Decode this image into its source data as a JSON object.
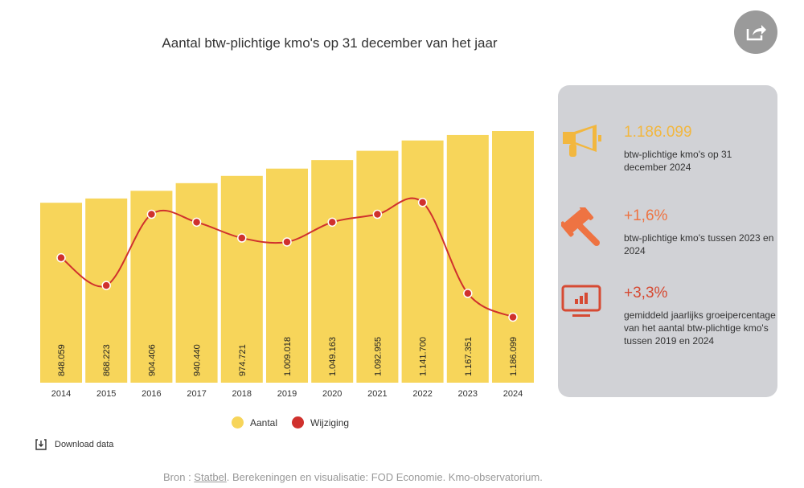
{
  "chart_data": {
    "type": "bar",
    "title": "Aantal btw-plichtige kmo's op 31 december van het jaar",
    "categories": [
      "2014",
      "2015",
      "2016",
      "2017",
      "2018",
      "2019",
      "2020",
      "2021",
      "2022",
      "2023",
      "2024"
    ],
    "series": [
      {
        "name": "Aantal",
        "type": "bar",
        "color": "#f7d55a",
        "values": [
          848059,
          868223,
          904406,
          940440,
          974721,
          1009018,
          1049163,
          1092955,
          1141700,
          1167351,
          1186099
        ],
        "labels": [
          "848.059",
          "868.223",
          "904.406",
          "940.440",
          "974.721",
          "1.009.018",
          "1.049.163",
          "1.092.955",
          "1.141.700",
          "1.167.351",
          "1.186.099"
        ]
      },
      {
        "name": "Wijziging",
        "type": "line",
        "color": "#d0312d",
        "values": [
          3.1,
          2.4,
          4.2,
          4.0,
          3.6,
          3.5,
          4.0,
          4.2,
          4.5,
          2.2,
          1.6
        ]
      }
    ],
    "ylim": [
      0,
      1186099
    ],
    "grid": false,
    "legend": "bottom"
  },
  "share_icon": "share-icon",
  "panel": {
    "kpis": [
      {
        "icon": "megaphone-icon",
        "value": "1.186.099",
        "desc": "btw-plichtige kmo's op 31 december 2024",
        "color": "#f2b73f"
      },
      {
        "icon": "gavel-icon",
        "value": "+1,6%",
        "desc": "btw-plichtige kmo's tussen 2023 en 2024",
        "color": "#ee7342"
      },
      {
        "icon": "monitor-chart-icon",
        "value": "+3,3%",
        "desc": "gemiddeld jaarlijks groeipercentage van het aantal btw-plichtige kmo's tussen 2019 en 2024",
        "color": "#d64a33"
      }
    ]
  },
  "download_label": "Download data",
  "source": {
    "prefix": "Bron : ",
    "link": "Statbel",
    "suffix": ". Berekeningen en visualisatie: FOD Economie. Kmo-observatorium."
  }
}
